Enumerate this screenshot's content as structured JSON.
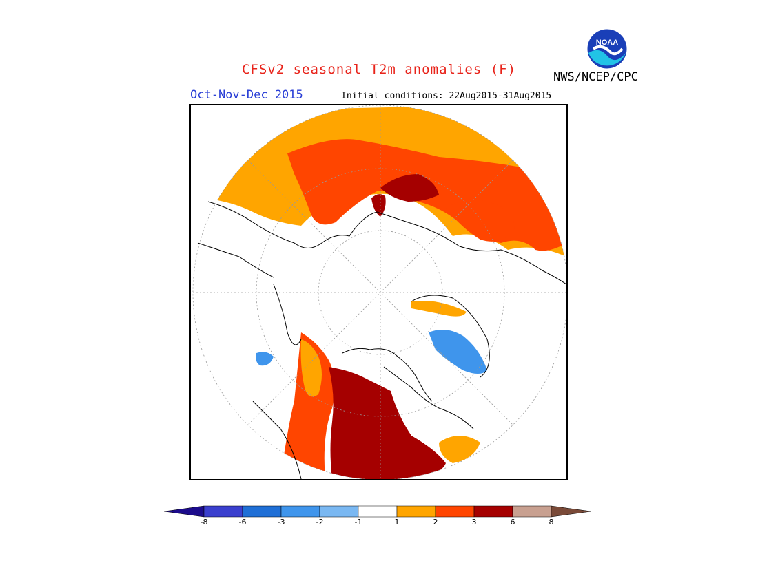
{
  "header": {
    "title": "CFSv2 seasonal T2m anomalies (F)",
    "agency": "NWS/NCEP/CPC",
    "season": "Oct-Nov-Dec 2015",
    "initial_conditions": "Initial conditions: 22Aug2015-31Aug2015",
    "logo_text": "NOAA"
  },
  "legend": {
    "units": "F",
    "ticks": [
      "-8",
      "-6",
      "-3",
      "-2",
      "-1",
      "1",
      "2",
      "3",
      "6",
      "8"
    ],
    "bins": [
      {
        "range": "< -8",
        "color": "#1c0c8c"
      },
      {
        "range": "-8 to -6",
        "color": "#3a3fce"
      },
      {
        "range": "-6 to -3",
        "color": "#1f6fd6"
      },
      {
        "range": "-3 to -2",
        "color": "#3f95ec"
      },
      {
        "range": "-2 to -1",
        "color": "#7ab8f2"
      },
      {
        "range": "-1 to 1",
        "color": "#ffffff"
      },
      {
        "range": "1 to 2",
        "color": "#ffa500"
      },
      {
        "range": "2 to 3",
        "color": "#ff4500"
      },
      {
        "range": "3 to 6",
        "color": "#a50000"
      },
      {
        "range": "6 to 8",
        "color": "#c8a090"
      },
      {
        "range": "> 8",
        "color": "#7a4a38"
      }
    ]
  },
  "map": {
    "projection": "north polar stereographic",
    "regions": [
      {
        "name": "western-eurasia-warm",
        "category": "1 to 2",
        "color": "#ffa500"
      },
      {
        "name": "siberia-warm",
        "category": "2 to 3",
        "color": "#ff4500"
      },
      {
        "name": "east-siberia-hot",
        "category": "3 to 6",
        "color": "#a50000"
      },
      {
        "name": "north-america-hot",
        "category": "3 to 6",
        "color": "#a50000"
      },
      {
        "name": "greenland-cool",
        "category": "-3 to -2",
        "color": "#3f95ec"
      },
      {
        "name": "hudson-bay-cool",
        "category": "-3 to -2",
        "color": "#3f95ec"
      }
    ]
  }
}
